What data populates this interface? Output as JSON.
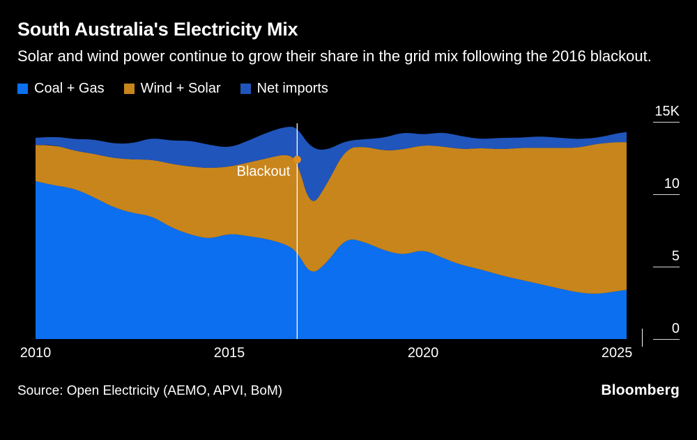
{
  "chart_data": {
    "type": "area",
    "stacked": true,
    "title": "South Australia's Electricity Mix",
    "subtitle": "Solar and wind power continue to grow their share in the grid mix following the 2016 blackout.",
    "legend_position": "top",
    "y_axis_side": "right",
    "xlim": [
      2010,
      2025.25
    ],
    "ylim": [
      0,
      15
    ],
    "x": [
      2010,
      2010.5,
      2011,
      2011.5,
      2012,
      2012.5,
      2013,
      2013.5,
      2014,
      2014.5,
      2015,
      2015.5,
      2016,
      2016.5,
      2016.75,
      2017.1,
      2017.5,
      2018,
      2018.5,
      2019,
      2019.5,
      2020,
      2020.5,
      2021,
      2021.5,
      2022,
      2022.5,
      2023,
      2023.5,
      2024,
      2024.5,
      2025,
      2025.25
    ],
    "series": [
      {
        "id": "coal-gas",
        "label": "Coal + Gas",
        "color": "#0b6ff0",
        "values": [
          10.9,
          10.6,
          10.4,
          9.8,
          9.1,
          8.7,
          8.5,
          7.7,
          7.2,
          6.9,
          7.3,
          7.1,
          6.9,
          6.5,
          6.0,
          4.4,
          5.2,
          7.0,
          6.7,
          6.1,
          5.8,
          6.2,
          5.6,
          5.1,
          4.8,
          4.4,
          4.1,
          3.8,
          3.5,
          3.2,
          3.1,
          3.3,
          3.4
        ]
      },
      {
        "id": "wind-solar",
        "label": "Wind + Solar",
        "color": "#c8851c",
        "values": [
          2.5,
          2.8,
          2.6,
          3.0,
          3.4,
          3.7,
          3.9,
          4.4,
          4.7,
          4.9,
          4.6,
          5.1,
          5.6,
          6.3,
          6.3,
          4.6,
          5.4,
          6.2,
          6.6,
          6.9,
          7.3,
          7.2,
          7.7,
          8.0,
          8.4,
          8.7,
          9.1,
          9.4,
          9.7,
          10.0,
          10.4,
          10.3,
          10.2
        ]
      },
      {
        "id": "net-imports",
        "label": "Net imports",
        "color": "#2055bb",
        "values": [
          0.5,
          0.6,
          0.8,
          1.0,
          1.0,
          1.1,
          1.5,
          1.6,
          1.8,
          1.6,
          1.3,
          1.5,
          1.8,
          1.9,
          2.3,
          4.2,
          2.4,
          0.5,
          0.5,
          0.9,
          1.2,
          0.7,
          1.0,
          0.9,
          0.6,
          0.8,
          0.7,
          0.8,
          0.7,
          0.6,
          0.4,
          0.6,
          0.7
        ]
      }
    ],
    "x_ticks": [
      {
        "v": 2010,
        "label": "2010"
      },
      {
        "v": 2015,
        "label": "2015"
      },
      {
        "v": 2020,
        "label": "2020"
      },
      {
        "v": 2025,
        "label": "2025"
      }
    ],
    "y_ticks": [
      {
        "v": 15,
        "label": "15K"
      },
      {
        "v": 10,
        "label": "10"
      },
      {
        "v": 5,
        "label": "5"
      },
      {
        "v": 0,
        "label": "0"
      }
    ],
    "annotation": {
      "x": 2016.75,
      "label": "Blackout",
      "line_color": "#ffffff",
      "line_top": 14.9,
      "label_y": 11.6,
      "dot_y": 12.4,
      "dot_color": "#e18e1f"
    }
  },
  "footer": {
    "source": "Source: Open Electricity (AEMO, APVI, BoM)",
    "brand": "Bloomberg"
  }
}
